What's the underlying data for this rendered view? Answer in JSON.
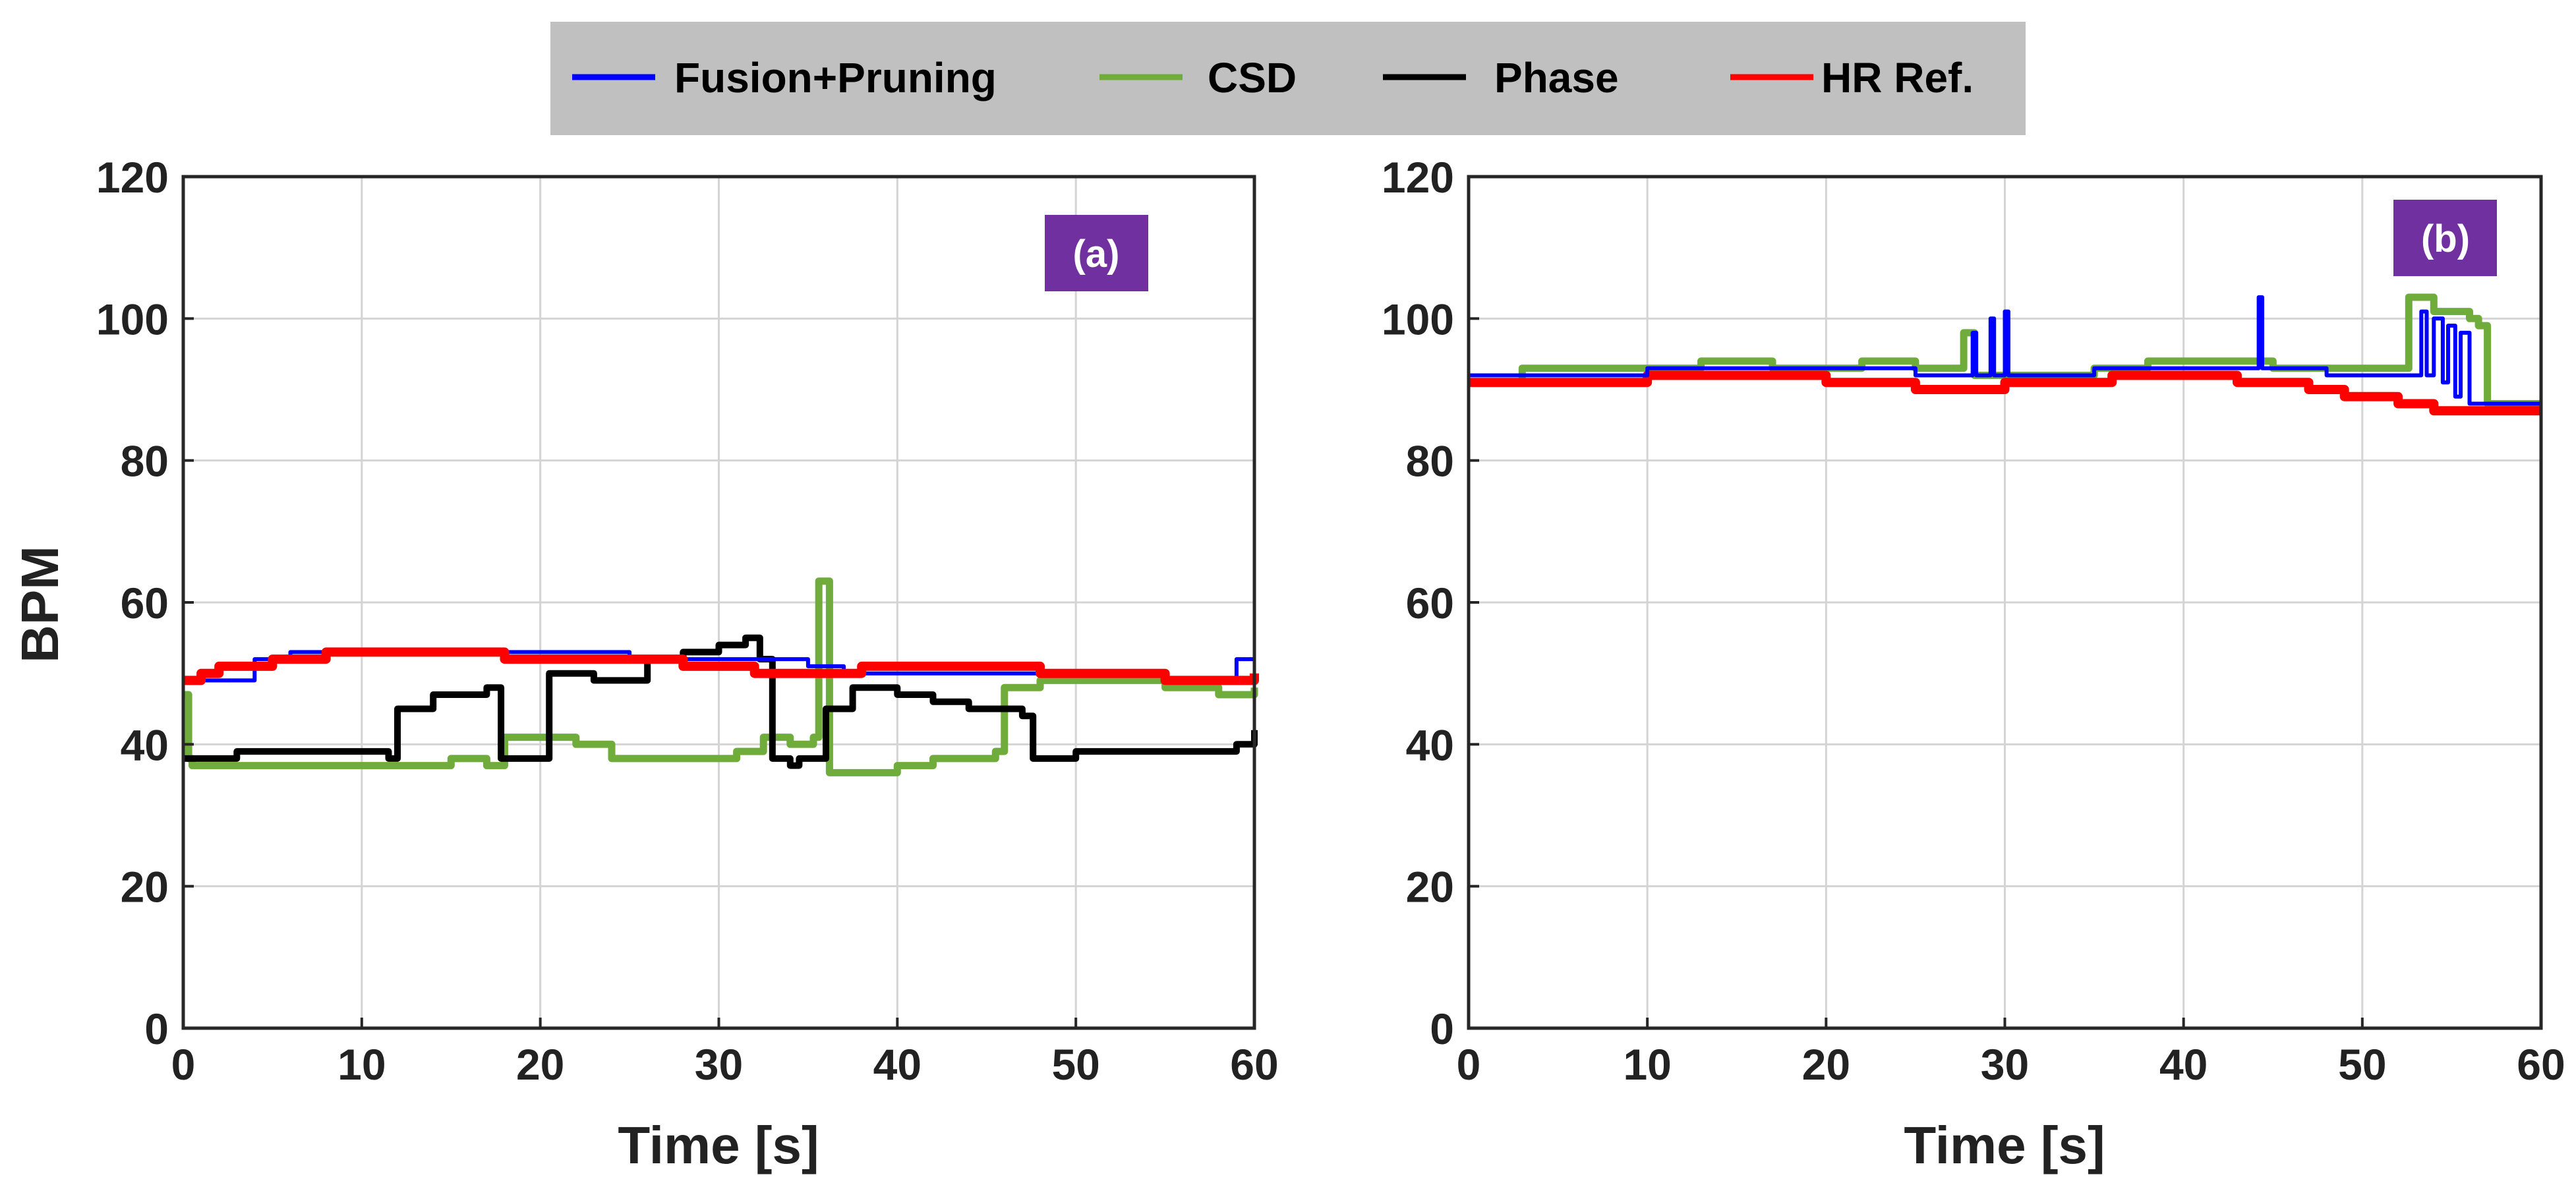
{
  "chart_data": [
    {
      "type": "line",
      "panel_label": "(a)",
      "xlabel": "Time [s]",
      "ylabel": "BPM",
      "xlim": [
        0,
        60
      ],
      "ylim": [
        0,
        120
      ],
      "xticks": [
        0,
        10,
        20,
        30,
        40,
        50,
        60
      ],
      "yticks": [
        0,
        20,
        40,
        60,
        80,
        100,
        120
      ],
      "grid": true,
      "series": [
        {
          "name": "CSD",
          "color": "#6fac3c",
          "x": [
            0,
            0.3,
            0.5,
            3,
            6,
            10,
            12,
            15,
            17,
            18,
            19,
            22,
            24,
            26,
            29,
            31,
            32.5,
            34,
            35.3,
            35.6,
            35.9,
            36.2,
            38,
            40,
            42,
            44,
            45.5,
            46,
            48,
            50,
            55,
            58,
            60
          ],
          "y": [
            47,
            38,
            37,
            37,
            37,
            37,
            37,
            38,
            37,
            41,
            41,
            40,
            38,
            38,
            38,
            39,
            41,
            40,
            41,
            63,
            63,
            36,
            36,
            37,
            38,
            38,
            39,
            48,
            49,
            49,
            48,
            47,
            48
          ]
        },
        {
          "name": "Phase",
          "color": "#000000",
          "x": [
            0,
            1,
            3,
            6,
            10,
            10.8,
            11.5,
            12,
            14,
            17,
            17.8,
            18.3,
            19.5,
            20.5,
            23,
            26,
            28,
            30,
            31.5,
            32.3,
            33,
            34,
            34.5,
            36,
            37.5,
            38.5,
            40,
            42,
            44,
            47,
            47.6,
            48.5,
            50,
            55,
            58,
            59,
            60
          ],
          "y": [
            38,
            38,
            39,
            39,
            39,
            39,
            38,
            45,
            47,
            48,
            38,
            38,
            38,
            50,
            49,
            52,
            53,
            54,
            55,
            52,
            38,
            37,
            38,
            45,
            48,
            48,
            47,
            46,
            45,
            44,
            38,
            38,
            39,
            39,
            39,
            40,
            42
          ]
        },
        {
          "name": "Fusion+Pruning",
          "color": "#0000ff",
          "x": [
            0,
            3.5,
            4,
            6,
            15,
            25,
            35,
            37,
            45,
            55,
            57,
            58.5,
            59,
            60
          ],
          "y": [
            49,
            49,
            52,
            53,
            53,
            52,
            51,
            50,
            50,
            49,
            49,
            49,
            52,
            52
          ]
        },
        {
          "name": "HR Ref.",
          "color": "#ff0000",
          "x": [
            0,
            1,
            2,
            5,
            8,
            15,
            18,
            28,
            32,
            35,
            38,
            45,
            48,
            50,
            55,
            58,
            60
          ],
          "y": [
            49,
            50,
            51,
            52,
            53,
            53,
            52,
            51,
            50,
            50,
            51,
            51,
            50,
            50,
            49,
            49,
            50
          ]
        }
      ]
    },
    {
      "type": "line",
      "panel_label": "(b)",
      "xlabel": "Time [s]",
      "ylabel": "",
      "xlim": [
        0,
        60
      ],
      "ylim": [
        0,
        120
      ],
      "xticks": [
        0,
        10,
        20,
        30,
        40,
        50,
        60
      ],
      "yticks": [
        0,
        20,
        40,
        60,
        80,
        100,
        120
      ],
      "grid": true,
      "series": [
        {
          "name": "CSD",
          "color": "#6fac3c",
          "x": [
            0,
            3,
            5,
            10,
            13,
            15,
            17,
            20,
            22,
            25,
            27.5,
            27.7,
            28,
            28.3,
            30,
            35,
            38,
            42,
            45,
            50,
            52,
            52.6,
            53,
            54,
            56,
            56.5,
            57,
            60
          ],
          "y": [
            91,
            93,
            93,
            93,
            94,
            94,
            93,
            93,
            94,
            93,
            93,
            98,
            98,
            92,
            92,
            93,
            94,
            94,
            93,
            93,
            93,
            103,
            103,
            101,
            100,
            99,
            88,
            88
          ]
        },
        {
          "name": "HR Ref.",
          "color": "#ff0000",
          "x": [
            0,
            5,
            10,
            15,
            20,
            22,
            25,
            27,
            29,
            30,
            33,
            36,
            39,
            41,
            43,
            45,
            47,
            49,
            52,
            54,
            57,
            60
          ],
          "y": [
            91,
            91,
            92,
            92,
            91,
            91,
            90,
            90,
            90,
            91,
            91,
            92,
            92,
            92,
            91,
            91,
            90,
            89,
            88,
            87,
            87,
            87
          ]
        },
        {
          "name": "Fusion+Pruning",
          "color": "#0000ff",
          "x": [
            0,
            3,
            5,
            10,
            15,
            20,
            25,
            28,
            28.2,
            28.4,
            29,
            29.2,
            29.4,
            29.8,
            30,
            30.2,
            31,
            35,
            40,
            44,
            44.2,
            44.4,
            48,
            50,
            53,
            53.3,
            53.6,
            54,
            54.5,
            54.8,
            55.2,
            55.5,
            56,
            57,
            60
          ],
          "y": [
            92,
            92,
            92,
            93,
            93,
            93,
            92,
            92,
            98,
            92,
            92,
            100,
            92,
            92,
            101,
            92,
            92,
            93,
            93,
            93,
            103,
            93,
            92,
            92,
            92,
            101,
            92,
            100,
            91,
            99,
            89,
            98,
            88,
            88,
            88
          ]
        }
      ]
    }
  ],
  "legend": {
    "placement": "top-center",
    "entries": [
      {
        "label": "Fusion+Pruning",
        "color": "#0000ff"
      },
      {
        "label": "CSD",
        "color": "#6fac3c"
      },
      {
        "label": "Phase",
        "color": "#000000"
      },
      {
        "label": "HR Ref.",
        "color": "#ff0000"
      }
    ],
    "background": "#c0c0c0"
  },
  "badge_color": "#7030a0"
}
